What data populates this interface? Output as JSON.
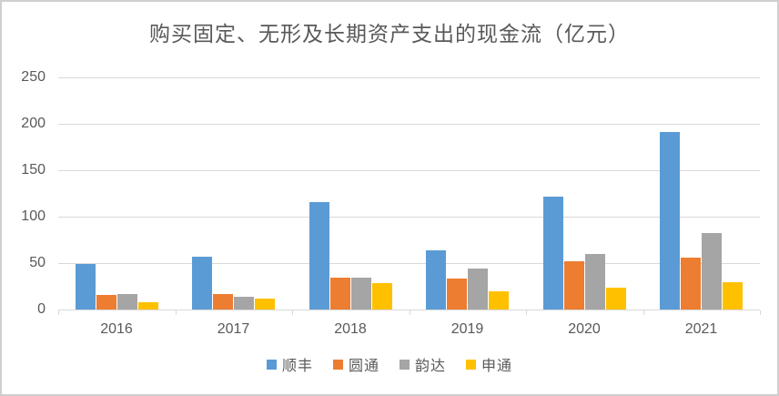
{
  "chart_data": {
    "type": "bar",
    "title": "购买固定、无形及长期资产支出的现金流（亿元）",
    "categories": [
      "2016",
      "2017",
      "2018",
      "2019",
      "2020",
      "2021"
    ],
    "series": [
      {
        "name": "顺丰",
        "color": "#5B9BD5",
        "values": [
          49,
          57,
          116,
          64,
          122,
          191
        ]
      },
      {
        "name": "圆通",
        "color": "#ED7D31",
        "values": [
          16,
          17,
          34,
          33,
          52,
          56
        ]
      },
      {
        "name": "韵达",
        "color": "#A5A5A5",
        "values": [
          17,
          14,
          34,
          44,
          60,
          82
        ]
      },
      {
        "name": "申通",
        "color": "#FFC000",
        "values": [
          8,
          12,
          28,
          20,
          24,
          29
        ]
      }
    ],
    "xlabel": "",
    "ylabel": "",
    "ylim": [
      0,
      250
    ],
    "yticks": [
      0,
      50,
      100,
      150,
      200,
      250
    ],
    "grid": true,
    "legend_position": "bottom",
    "colors": {
      "text": "#595959",
      "gridline": "#d9d9d9",
      "background": "#ffffff",
      "frame_border": "#cfcfcf"
    }
  }
}
